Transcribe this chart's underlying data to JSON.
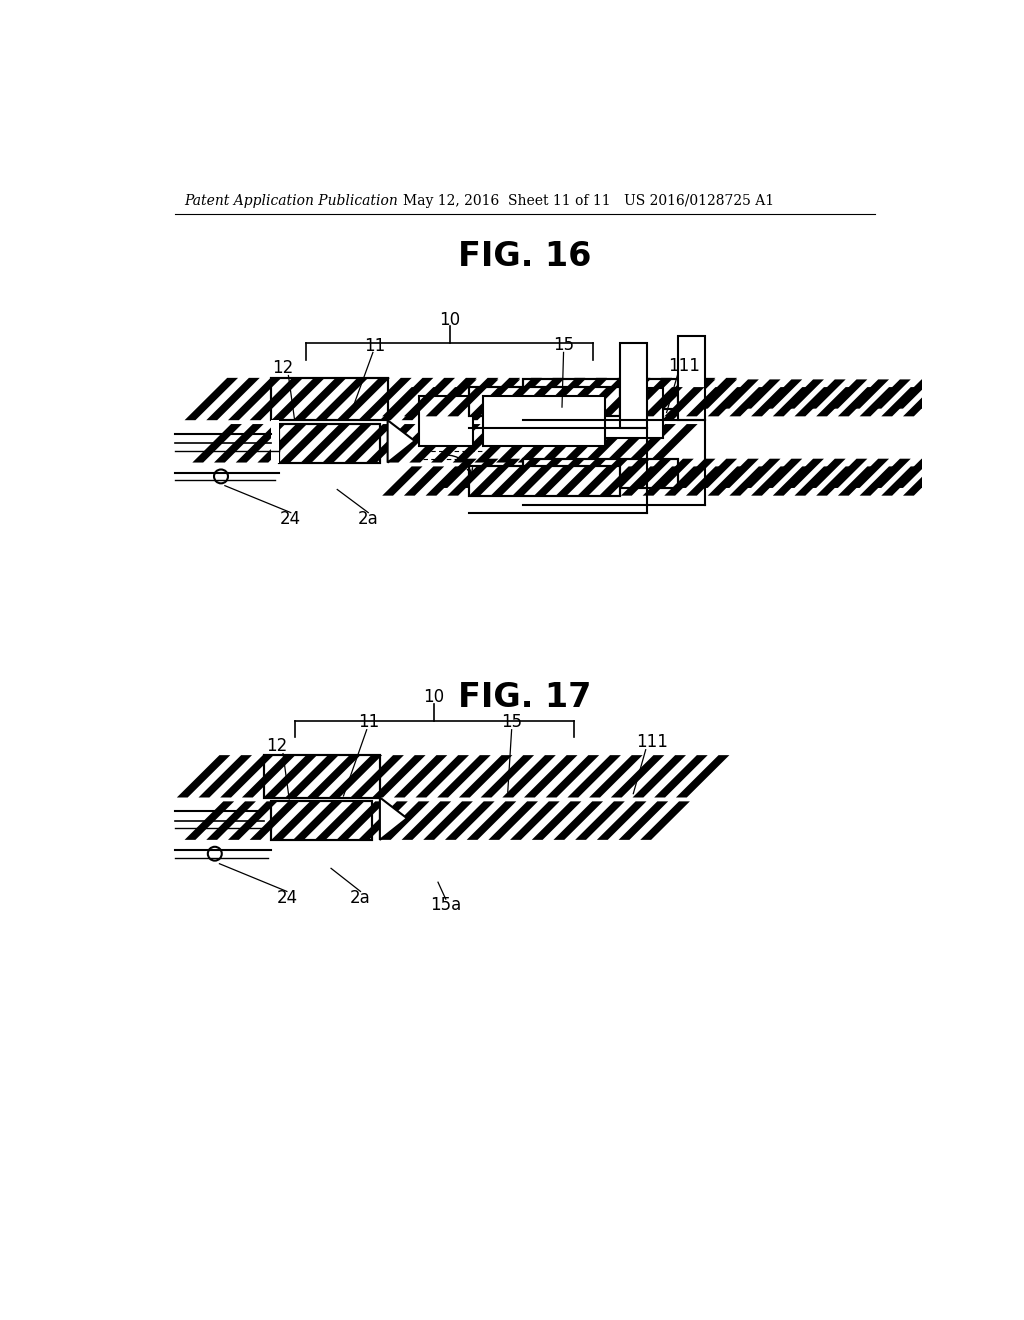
{
  "bg_color": "#ffffff",
  "header_text": "Patent Application Publication",
  "header_date": "May 12, 2016  Sheet 11 of 11",
  "header_patent": "US 2016/0128725 A1",
  "fig16_title": "FIG. 16",
  "fig17_title": "FIG. 17",
  "label_10": "10",
  "label_11": "11",
  "label_12": "12",
  "label_15": "15",
  "label_111": "111",
  "label_24": "24",
  "label_2a": "2a",
  "label_15a": "15a"
}
